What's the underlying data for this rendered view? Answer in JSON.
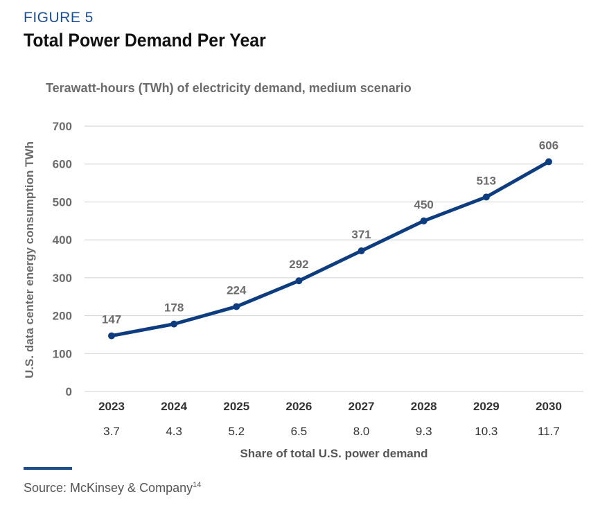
{
  "figure_label": "FIGURE 5",
  "figure_title": "Total Power Demand Per Year",
  "source_text": "Source: McKinsey & Company",
  "source_ref": "14",
  "colors": {
    "accent": "#1f4e8c",
    "line": "#0d3d7f",
    "grid": "#d0d0d0",
    "muted_text": "#6b6b6b"
  },
  "chart_data": {
    "type": "line",
    "title": "",
    "subtitle": "Terawatt-hours (TWh) of electricity demand, medium scenario",
    "ylabel": "U.S. data center energy consumption TWh",
    "xlabel": "Share of total U.S. power demand",
    "categories": [
      "2023",
      "2024",
      "2025",
      "2026",
      "2027",
      "2028",
      "2029",
      "2030"
    ],
    "secondary_categories": [
      "3.7",
      "4.3",
      "5.2",
      "6.5",
      "8.0",
      "9.3",
      "10.3",
      "11.7"
    ],
    "series": [
      {
        "values": [
          147,
          178,
          224,
          292,
          371,
          450,
          513,
          606
        ]
      }
    ],
    "data_labels": [
      "147",
      "178",
      "224",
      "292",
      "371",
      "450",
      "513",
      "606"
    ],
    "ylim": [
      0,
      700
    ],
    "yticks": [
      0,
      100,
      200,
      300,
      400,
      500,
      600,
      700
    ],
    "grid": true,
    "legend": "none"
  }
}
